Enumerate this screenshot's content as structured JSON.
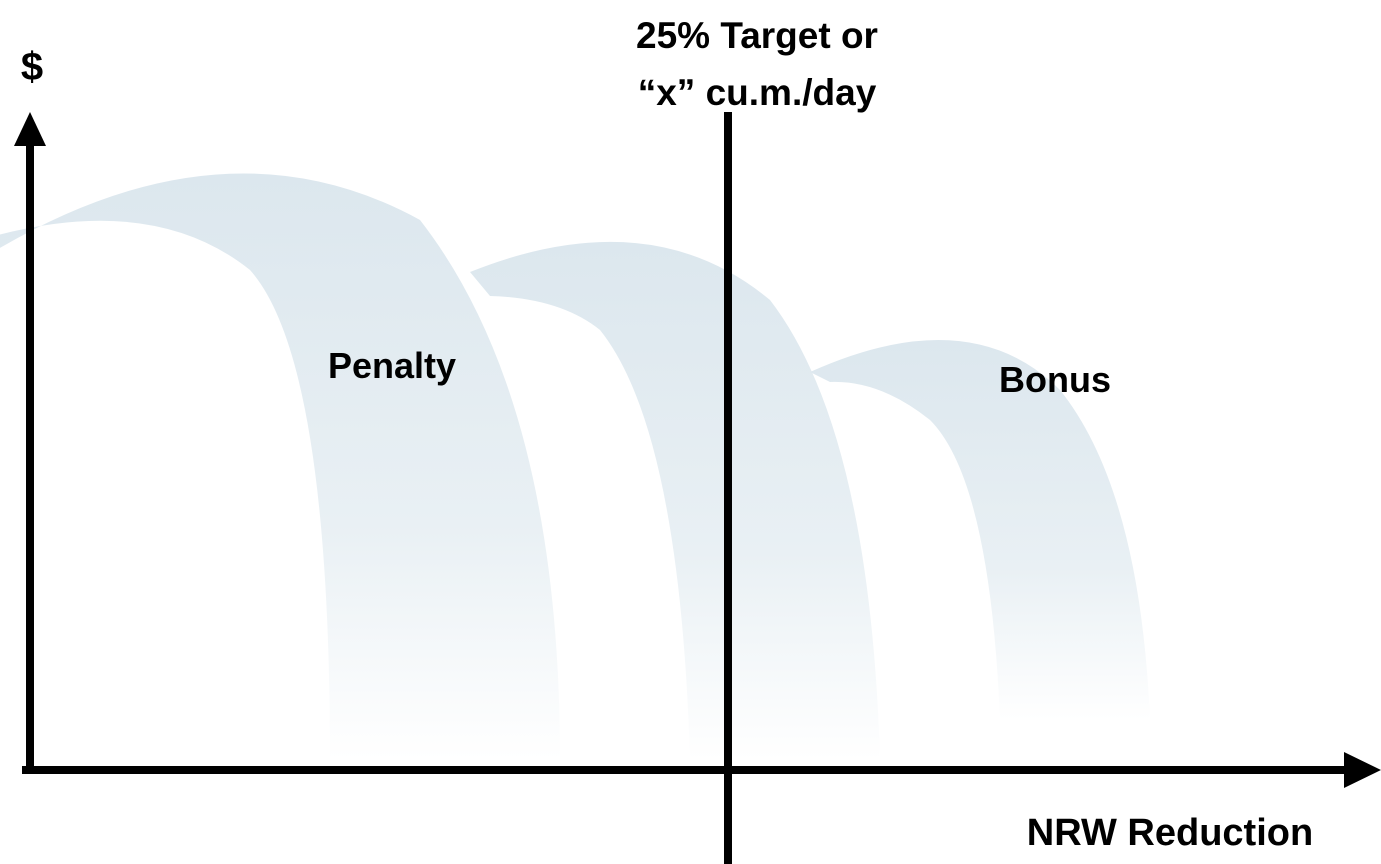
{
  "y_axis_label": "$",
  "target_label": [
    "25% Target or",
    "“x” cu.m./day"
  ],
  "regions": {
    "left": "Penalty",
    "right": "Bonus"
  },
  "x_axis_label": "NRW Reduction"
}
